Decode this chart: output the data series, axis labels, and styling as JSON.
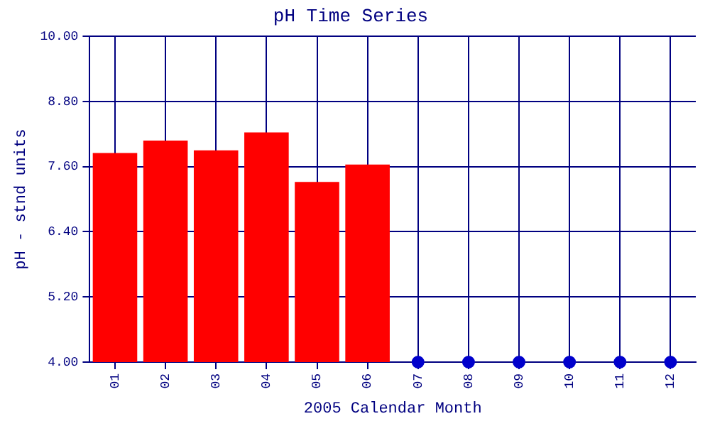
{
  "chart_data": {
    "type": "bar",
    "title": "pH Time Series",
    "xlabel": "2005 Calendar Month",
    "ylabel": "pH - stnd units",
    "categories": [
      "01",
      "02",
      "03",
      "04",
      "05",
      "06",
      "07",
      "08",
      "09",
      "10",
      "11",
      "12"
    ],
    "series": [
      {
        "color": "#ff0000",
        "values": [
          7.85,
          8.08,
          7.9,
          8.23,
          7.32,
          7.64,
          null,
          null,
          null,
          null,
          null,
          null
        ]
      },
      {
        "type": "scatter",
        "color": "#0000cc",
        "x": [
          "07",
          "08",
          "09",
          "10",
          "11",
          "12"
        ],
        "values": [
          4.0,
          4.0,
          4.0,
          4.0,
          4.0,
          4.0
        ]
      }
    ],
    "ylim": [
      4.0,
      10.0
    ],
    "yticks": [
      {
        "value": 4.0,
        "label": "4.00"
      },
      {
        "value": 5.2,
        "label": "5.20"
      },
      {
        "value": 6.4,
        "label": "6.40"
      },
      {
        "value": 7.6,
        "label": "7.60"
      },
      {
        "value": 8.8,
        "label": "8.80"
      },
      {
        "value": 10.0,
        "label": "10.00"
      }
    ],
    "grid": true,
    "legend": false,
    "marker": "circle"
  }
}
